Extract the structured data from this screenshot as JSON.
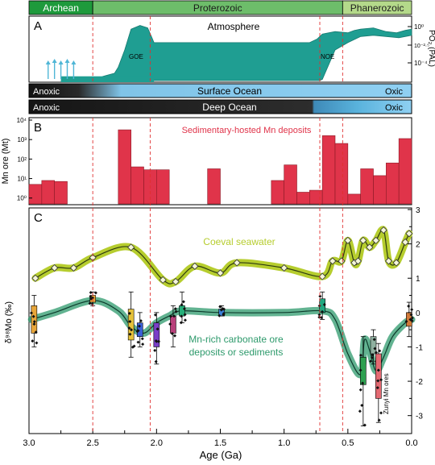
{
  "eons": [
    {
      "name": "Archean",
      "from": 3.0,
      "to": 2.5,
      "color": "#1e9a3c"
    },
    {
      "name": "Proterozoic",
      "from": 2.5,
      "to": 0.541,
      "color": "#6dbd6a"
    },
    {
      "name": "Phanerozoic",
      "from": 0.541,
      "to": 0.0,
      "color": "#b4d98a"
    }
  ],
  "boundary_lines": [
    2.5,
    2.05,
    0.72,
    0.541
  ],
  "panelA": {
    "letter": "A",
    "title": "Atmosphere",
    "ylabel": "PO₂ (PAL)",
    "ticks": [
      "10⁰",
      "10⁻²·⁵",
      "10⁻⁴"
    ],
    "goe": "GOE",
    "noe": "NOE",
    "fill": "#1f9e92",
    "arrow_color": "#4fb6d6",
    "profile": [
      [
        2.75,
        0
      ],
      [
        2.5,
        0
      ],
      [
        2.42,
        0.07
      ],
      [
        2.33,
        0.12
      ],
      [
        2.3,
        0.22
      ],
      [
        2.25,
        0.5
      ],
      [
        2.2,
        0.84
      ],
      [
        2.13,
        0.9
      ],
      [
        2.07,
        0.86
      ],
      [
        2.04,
        0.72
      ],
      [
        2.02,
        0.62
      ],
      [
        1.0,
        0.62
      ],
      [
        0.8,
        0.62
      ],
      [
        0.74,
        0.68
      ],
      [
        0.7,
        0.76
      ],
      [
        0.6,
        0.8
      ],
      [
        0.5,
        0.78
      ],
      [
        0.45,
        0.82
      ],
      [
        0.4,
        0.84
      ],
      [
        0.3,
        0.86
      ],
      [
        0.2,
        0.8
      ],
      [
        0.12,
        0.78
      ],
      [
        0.05,
        0.82
      ],
      [
        0.0,
        0.84
      ]
    ],
    "profile_low": [
      [
        0.72,
        0.0
      ],
      [
        0.7,
        0.02
      ],
      [
        0.6,
        0.5
      ],
      [
        0.5,
        0.62
      ],
      [
        0.4,
        0.72
      ],
      [
        0.3,
        0.74
      ],
      [
        0.2,
        0.72
      ],
      [
        0.1,
        0.7
      ],
      [
        0.0,
        0.74
      ]
    ]
  },
  "ocean": {
    "surface": {
      "label": "Surface Ocean",
      "left": "Anoxic",
      "right": "Oxic"
    },
    "deep": {
      "label": "Deep Ocean",
      "left": "Anoxic",
      "right": "Oxic"
    }
  },
  "panelB": {
    "letter": "B",
    "title": "Sedimentary-hosted Mn deposits",
    "ylabel": "Mn ore (Mt)",
    "yticks": [
      "10⁰",
      "10¹",
      "10²",
      "10³",
      "10⁴"
    ],
    "bar_color": "#e0344a"
  },
  "panelC": {
    "letter": "C",
    "ylabel": "δ⁹⁸Mo (‰)",
    "yticks": [
      "3",
      "2",
      "1",
      "0",
      "-1",
      "-2",
      "-3"
    ],
    "xlabel": "Age (Ga)",
    "xticks": [
      "3.0",
      "2.5",
      "2.0",
      "1.5",
      "1.0",
      "0.5",
      "0.0"
    ],
    "seawater_label": "Coeval seawater",
    "seawater_color": "#b6cd2e",
    "ore_label_1": "Mn-rich carbonate ore",
    "ore_label_2": "deposits or sediments",
    "ore_color": "#2e9a6c",
    "zunyi_label": "Zunyi Mn ores"
  },
  "chart_data": [
    {
      "type": "area",
      "title": "Atmosphere",
      "ylabel": "PO₂ (PAL)",
      "xlabel": "Age (Ga)",
      "xlim": [
        3.0,
        0.0
      ],
      "annotations": [
        "GOE",
        "NOE"
      ]
    },
    {
      "type": "bar",
      "title": "Sedimentary-hosted Mn deposits",
      "ylabel": "Mn ore (Mt)",
      "xlabel": "Age (Ga)",
      "ylim_log10": [
        -0.3,
        4.0
      ],
      "bin_width_ga": 0.1,
      "bars": [
        {
          "x": 2.95,
          "log10": 0.7
        },
        {
          "x": 2.85,
          "log10": 0.9
        },
        {
          "x": 2.75,
          "log10": 0.85
        },
        {
          "x": 2.25,
          "log10": 3.5
        },
        {
          "x": 2.15,
          "log10": 1.6
        },
        {
          "x": 2.05,
          "log10": 1.45
        },
        {
          "x": 1.95,
          "log10": 1.45
        },
        {
          "x": 1.55,
          "log10": 1.5
        },
        {
          "x": 1.05,
          "log10": 0.9
        },
        {
          "x": 0.95,
          "log10": 1.7
        },
        {
          "x": 0.85,
          "log10": 0.3
        },
        {
          "x": 0.75,
          "log10": 0.4
        },
        {
          "x": 0.65,
          "log10": 3.2
        },
        {
          "x": 0.55,
          "log10": 2.8
        },
        {
          "x": 0.45,
          "log10": 0.2
        },
        {
          "x": 0.35,
          "log10": 1.5
        },
        {
          "x": 0.25,
          "log10": 1.15
        },
        {
          "x": 0.15,
          "log10": 1.8
        },
        {
          "x": 0.05,
          "log10": 3.05
        }
      ]
    },
    {
      "type": "line",
      "xlabel": "Age (Ga)",
      "ylabel": "δ⁹⁸Mo (‰)",
      "xlim": [
        3.0,
        0.0
      ],
      "ylim": [
        -3.5,
        3.0
      ],
      "series": [
        {
          "name": "Coeval seawater",
          "x": [
            2.95,
            2.8,
            2.65,
            2.5,
            2.2,
            1.95,
            1.85,
            1.7,
            1.5,
            1.37,
            1.0,
            0.7,
            0.62,
            0.55,
            0.5,
            0.45,
            0.42,
            0.38,
            0.33,
            0.28,
            0.22,
            0.18,
            0.12,
            0.05,
            0.02
          ],
          "y": [
            1.0,
            1.3,
            1.3,
            1.6,
            1.9,
            0.95,
            0.9,
            1.35,
            1.15,
            1.45,
            1.3,
            1.05,
            1.5,
            1.5,
            2.1,
            1.45,
            1.5,
            2.1,
            1.9,
            2.1,
            2.4,
            1.5,
            1.45,
            2.05,
            2.3
          ]
        },
        {
          "name": "Mn-rich carbonate ore deposits or sediments",
          "x": [
            2.98,
            2.8,
            2.5,
            2.3,
            2.2,
            2.1,
            2.0,
            1.9,
            1.8,
            1.5,
            1.0,
            0.7,
            0.6,
            0.5,
            0.4,
            0.37,
            0.33,
            0.28,
            0.22,
            0.15,
            0.05,
            0.0
          ],
          "y": [
            -0.2,
            0.0,
            0.35,
            0.05,
            -0.4,
            -0.6,
            -0.3,
            -0.1,
            0.05,
            0.0,
            0.0,
            0.05,
            -0.2,
            -1.2,
            -1.8,
            -0.8,
            -1.1,
            -1.7,
            -1.3,
            -0.7,
            -0.3,
            -0.2
          ]
        }
      ],
      "boxes": [
        {
          "x": 2.96,
          "q1": -0.6,
          "q3": 0.2,
          "min": -1.0,
          "max": 0.5,
          "color": "#e8a63a"
        },
        {
          "x": 2.5,
          "q1": 0.3,
          "q3": 0.5,
          "min": 0.2,
          "max": 0.6,
          "color": "#e8a63a"
        },
        {
          "x": 2.2,
          "q1": -0.8,
          "q3": 0.1,
          "min": -1.3,
          "max": 0.6,
          "color": "#e6c23a"
        },
        {
          "x": 2.13,
          "q1": -0.7,
          "q3": -0.3,
          "min": -1.0,
          "max": 0.0,
          "color": "#3a5fd6"
        },
        {
          "x": 2.0,
          "q1": -1.0,
          "q3": -0.3,
          "min": -1.5,
          "max": 0.0,
          "color": "#7a3fc8"
        },
        {
          "x": 1.87,
          "q1": -0.6,
          "q3": -0.1,
          "min": -1.0,
          "max": 0.2,
          "color": "#b8407a"
        },
        {
          "x": 1.8,
          "q1": -0.1,
          "q3": 0.2,
          "min": -0.3,
          "max": 0.6,
          "color": "#26b07a"
        },
        {
          "x": 1.49,
          "q1": -0.1,
          "q3": 0.1,
          "min": -0.1,
          "max": 0.2,
          "color": "#3a80d6"
        },
        {
          "x": 0.7,
          "q1": 0.0,
          "q3": 0.4,
          "min": -0.2,
          "max": 0.6,
          "color": "#20a880"
        },
        {
          "x": 0.38,
          "q1": -2.1,
          "q3": -1.3,
          "min": -3.3,
          "max": -0.7,
          "color": "#2ea050"
        },
        {
          "x": 0.3,
          "q1": -1.2,
          "q3": -0.7,
          "min": -1.5,
          "max": -0.5,
          "color": "#8fb0a0"
        },
        {
          "x": 0.26,
          "q1": -2.5,
          "q3": -1.2,
          "min": -3.2,
          "max": -0.9,
          "color": "#e46a72"
        },
        {
          "x": 0.02,
          "q1": -0.4,
          "q3": 0.0,
          "min": -0.7,
          "max": 0.3,
          "color": "#d27a3a"
        }
      ]
    }
  ]
}
